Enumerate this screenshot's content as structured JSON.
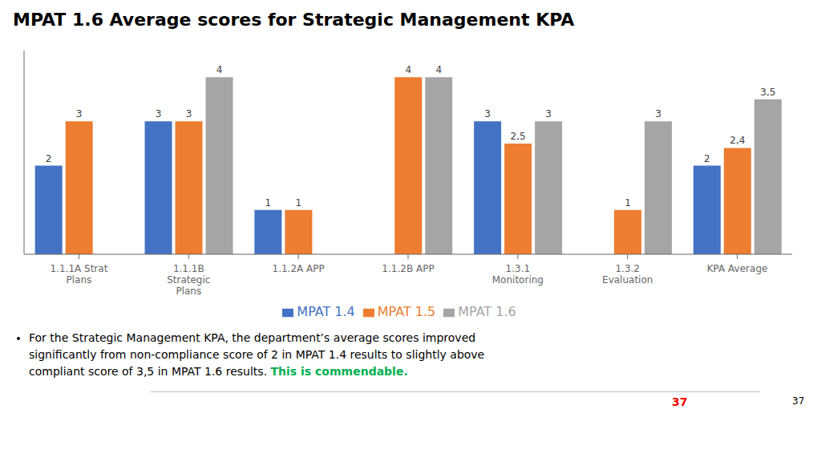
{
  "chart_data": {
    "type": "bar",
    "title": "MPAT 1.6 Average scores for Strategic Management  KPA",
    "categories": [
      "1.1.1A Strat\nPlans",
      "1.1.1B\nStrategic\nPlans",
      "1.1.2A APP",
      "1.1.2B APP",
      "1.3.1\nMonitoring",
      "1.3.2\nEvaluation",
      "KPA Average"
    ],
    "series": [
      {
        "name": "MPAT 1.4",
        "color": "#4472C4",
        "values": [
          2,
          3,
          1,
          null,
          3,
          null,
          2
        ],
        "value_labels": [
          "2",
          "3",
          "1",
          null,
          "3",
          null,
          "2"
        ]
      },
      {
        "name": "MPAT 1.5",
        "color": "#ED7D31",
        "values": [
          3,
          3,
          1,
          4,
          2.5,
          1,
          2.4
        ],
        "value_labels": [
          "3",
          "3",
          "1",
          "4",
          "2,5",
          "1",
          "2,4"
        ]
      },
      {
        "name": "MPAT 1.6",
        "color": "#A5A5A5",
        "values": [
          null,
          4,
          null,
          4,
          3,
          3,
          3.5
        ],
        "value_labels": [
          null,
          "4",
          null,
          "4",
          "3",
          "3",
          "3,5"
        ]
      }
    ],
    "ylim": [
      0,
      4.6
    ],
    "grid": false,
    "legend": "bottom",
    "data_labels": true,
    "tick_labels": "x",
    "annotations": [
      {
        "text": "For the Strategic Management KPA, the department’s average scores improved"
      },
      {
        "text": "significantly from non-compliance score of 2 in MPAT 1.4 results to slightly above"
      },
      {
        "text": "compliant score of 3,5 in MPAT 1.6 results. "
      },
      {
        "text": "This is commendable.",
        "color": "#00B050"
      },
      {
        "text": "37",
        "color": "#FF0000"
      },
      {
        "text": "37"
      }
    ]
  }
}
